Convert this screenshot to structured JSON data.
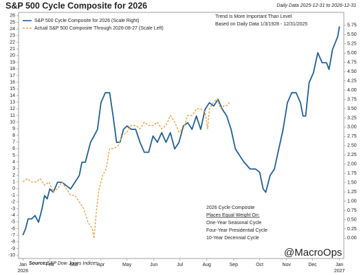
{
  "chart_data": {
    "type": "line",
    "title": "S&P 500 Cycle Composite for 2026",
    "subtitle": "Daily Data 2025-12-31 to 2026-12-31",
    "annotations": [
      "Trend Is More Important Than Level",
      "Based on Daily Data 1/3/1928 - 12/31/2025"
    ],
    "box_lines": [
      "2026 Cycle Composite",
      "Places Equal Weight On:",
      "One-Year Seasonal Cycle",
      "Four-Year Presidential Cycle",
      "10-Year Decennial Cycle"
    ],
    "watermark": "@MacroOps",
    "source_label": "Source:",
    "source": "S&P Dow Jones Indices",
    "xlim": [
      -5,
      370
    ],
    "xticks": [
      {
        "value": 0,
        "label": "Jan"
      },
      {
        "value": 31,
        "label": "Feb"
      },
      {
        "value": 59,
        "label": "Mar"
      },
      {
        "value": 90,
        "label": "Apr"
      },
      {
        "value": 120,
        "label": "May"
      },
      {
        "value": 151,
        "label": "Jun"
      },
      {
        "value": 181,
        "label": "Jul"
      },
      {
        "value": 212,
        "label": "Aug"
      },
      {
        "value": 243,
        "label": "Sep"
      },
      {
        "value": 273,
        "label": "Oct"
      },
      {
        "value": 304,
        "label": "Nov"
      },
      {
        "value": 334,
        "label": "Dec"
      },
      {
        "value": 365,
        "label": "Jan"
      }
    ],
    "year_labels": [
      {
        "value": 0,
        "label": "2026"
      },
      {
        "value": 365,
        "label": "2027"
      }
    ],
    "ylim": [
      -10.5,
      26.5
    ],
    "yticks": [
      -10,
      -9,
      -8,
      -7,
      -6,
      -5,
      -4,
      -3,
      -2,
      -1,
      0,
      1,
      2,
      3,
      4,
      5,
      6,
      7,
      8,
      9,
      10,
      11,
      12,
      13,
      14,
      15,
      16,
      17,
      18,
      19,
      20,
      21,
      22,
      23,
      24,
      25,
      26
    ],
    "y2lim": [
      -0.55,
      6.1
    ],
    "y2ticks": [
      {
        "value": 0,
        "label": "0.00"
      },
      {
        "value": 0.25,
        "label": "0.25"
      },
      {
        "value": 0.5,
        "label": "0.50"
      },
      {
        "value": 0.75,
        "label": "0.75"
      },
      {
        "value": 1,
        "label": "1.00"
      },
      {
        "value": 1.25,
        "label": "1.25"
      },
      {
        "value": 1.5,
        "label": "1.50"
      },
      {
        "value": 1.75,
        "label": "1.75"
      },
      {
        "value": 2,
        "label": "2.00"
      },
      {
        "value": 2.25,
        "label": "2.25"
      },
      {
        "value": 2.5,
        "label": "2.50"
      },
      {
        "value": 2.75,
        "label": "2.75"
      },
      {
        "value": 3,
        "label": "3.00"
      },
      {
        "value": 3.25,
        "label": "3.25"
      },
      {
        "value": 3.5,
        "label": "3.50"
      },
      {
        "value": 3.75,
        "label": "3.75"
      },
      {
        "value": 4,
        "label": "4.00"
      },
      {
        "value": 4.25,
        "label": "4.25"
      },
      {
        "value": 4.5,
        "label": "4.50"
      },
      {
        "value": 4.75,
        "label": "4.75"
      },
      {
        "value": 5,
        "label": "5.00"
      },
      {
        "value": 5.25,
        "label": "5.25"
      },
      {
        "value": 5.5,
        "label": "5.50"
      },
      {
        "value": 5.75,
        "label": "5.75"
      }
    ],
    "series": [
      {
        "name": "S&P 500 Cycle Composite for 2026 (Scale Right)",
        "color": "#1f5f99",
        "dashed": false,
        "axis": "y2",
        "x": [
          0,
          3,
          6,
          10,
          14,
          18,
          22,
          25,
          28,
          31,
          35,
          40,
          45,
          50,
          55,
          60,
          65,
          68,
          72,
          78,
          82,
          86,
          90,
          95,
          100,
          104,
          108,
          112,
          116,
          120,
          125,
          130,
          135,
          140,
          145,
          150,
          155,
          160,
          165,
          170,
          175,
          180,
          185,
          190,
          195,
          200,
          205,
          210,
          215,
          220,
          225,
          230,
          235,
          240,
          245,
          250,
          255,
          262,
          268,
          273,
          277,
          280,
          285,
          290,
          295,
          300,
          305,
          310,
          315,
          320,
          323,
          326,
          330,
          335,
          340,
          345,
          350,
          353,
          357,
          360,
          363,
          365
        ],
        "values": [
          0.08,
          0.25,
          0.52,
          0.52,
          0.61,
          0.43,
          0.79,
          1.15,
          1.06,
          1.33,
          1.24,
          1.51,
          1.51,
          1.42,
          1.33,
          1.51,
          1.69,
          2.05,
          2.05,
          2.59,
          2.76,
          2.94,
          3.66,
          3.93,
          3.93,
          3.3,
          2.59,
          2.59,
          2.94,
          3.03,
          2.94,
          2.94,
          2.59,
          2.32,
          2.32,
          2.76,
          2.59,
          2.85,
          2.59,
          2.85,
          2.41,
          2.59,
          3.03,
          3.12,
          2.94,
          3.3,
          2.94,
          3.48,
          3.66,
          3.57,
          3.75,
          3.48,
          3.3,
          2.94,
          2.41,
          2.23,
          2.05,
          1.87,
          1.87,
          1.78,
          1.33,
          1.24,
          1.69,
          1.87,
          2.41,
          2.94,
          3.66,
          3.93,
          3.93,
          3.66,
          3.3,
          3.3,
          4.2,
          4.47,
          5.01,
          4.74,
          4.74,
          4.56,
          5.1,
          5.27,
          5.45,
          5.72
        ]
      },
      {
        "name": "Actual S&P 500 Composite Through 2026-08-27 (Scale Left)",
        "color": "#f0a040",
        "dashed": true,
        "axis": "y",
        "x": [
          0,
          5,
          10,
          15,
          20,
          25,
          30,
          35,
          40,
          45,
          50,
          55,
          60,
          65,
          70,
          75,
          80,
          82,
          85,
          88,
          92,
          96,
          100,
          105,
          110,
          115,
          120,
          125,
          130,
          135,
          140,
          145,
          150,
          155,
          160,
          165,
          170,
          175,
          180,
          185,
          190,
          195,
          200,
          205,
          210,
          213,
          215,
          220,
          224,
          228,
          232,
          236,
          238
        ],
        "values": [
          1,
          1.5,
          1,
          1,
          1.5,
          0.5,
          1,
          -0.5,
          0,
          1,
          0,
          -1,
          -1,
          -2,
          -3,
          -5,
          -6,
          -7.5,
          -3,
          0,
          2,
          3,
          6,
          6,
          6.5,
          8,
          8.5,
          9.5,
          9.5,
          9,
          10,
          9.5,
          9.5,
          10,
          9,
          9.5,
          11,
          10,
          8.5,
          9,
          11,
          11,
          12,
          12,
          11.5,
          9,
          12,
          13,
          13.5,
          12,
          12.5,
          12.5,
          13
        ]
      }
    ]
  }
}
